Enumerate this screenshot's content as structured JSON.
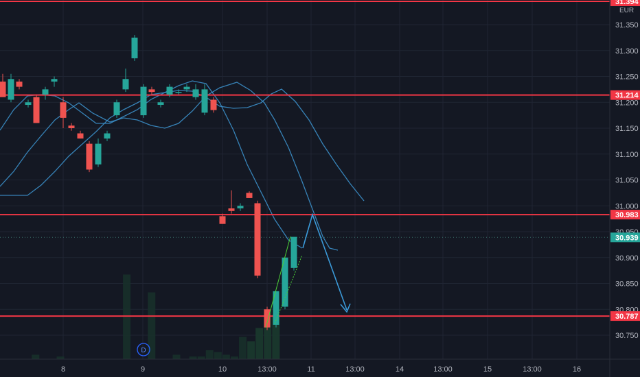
{
  "chart_data": {
    "type": "candlestick",
    "currency": "EUR",
    "y_axis_ticks": [
      "31.350",
      "31.300",
      "31.250",
      "31.200",
      "31.150",
      "31.100",
      "31.050",
      "31.000",
      "30.950",
      "30.900",
      "30.850",
      "30.800",
      "30.750"
    ],
    "ylim": [
      30.72,
      31.395
    ],
    "x_axis_ticks": [
      "8",
      "9",
      "10",
      "13:00",
      "11",
      "13:00",
      "14",
      "13:00",
      "15",
      "13:00",
      "16"
    ],
    "horizontal_levels": [
      {
        "value": 31.394,
        "label": "31.394",
        "color": "#f23645"
      },
      {
        "value": 31.214,
        "label": "31.214",
        "color": "#f23645"
      },
      {
        "value": 30.983,
        "label": "30.983",
        "color": "#f23645"
      },
      {
        "value": 30.787,
        "label": "30.787",
        "color": "#f23645"
      }
    ],
    "last_price": {
      "value": 30.939,
      "label": "30.939",
      "color": "#26a69a"
    },
    "session_marker": "D",
    "colors": {
      "up": "#26a69a",
      "down": "#ef5350",
      "ma": "#3b8fc9",
      "arrow": "#3b9ad9",
      "trend": "#4cd137"
    },
    "candles": [
      {
        "o": 31.24,
        "h": 31.255,
        "l": 31.215,
        "c": 31.21
      },
      {
        "o": 31.205,
        "h": 31.255,
        "l": 31.2,
        "c": 31.245
      },
      {
        "o": 31.24,
        "h": 31.245,
        "l": 31.225,
        "c": 31.23
      },
      {
        "o": 31.195,
        "h": 31.205,
        "l": 31.19,
        "c": 31.2
      },
      {
        "o": 31.21,
        "h": 31.215,
        "l": 31.16,
        "c": 31.16
      },
      {
        "o": 31.215,
        "h": 31.23,
        "l": 31.205,
        "c": 31.225
      },
      {
        "o": 31.24,
        "h": 31.25,
        "l": 31.23,
        "c": 31.245
      },
      {
        "o": 31.2,
        "h": 31.21,
        "l": 31.15,
        "c": 31.17
      },
      {
        "o": 31.155,
        "h": 31.16,
        "l": 31.145,
        "c": 31.15
      },
      {
        "o": 31.14,
        "h": 31.145,
        "l": 31.13,
        "c": 31.13
      },
      {
        "o": 31.12,
        "h": 31.125,
        "l": 31.065,
        "c": 31.07
      },
      {
        "o": 31.08,
        "h": 31.13,
        "l": 31.075,
        "c": 31.12
      },
      {
        "o": 31.13,
        "h": 31.145,
        "l": 31.125,
        "c": 31.14
      },
      {
        "o": 31.175,
        "h": 31.205,
        "l": 31.17,
        "c": 31.2
      },
      {
        "o": 31.225,
        "h": 31.265,
        "l": 31.22,
        "c": 31.245
      },
      {
        "o": 31.285,
        "h": 31.33,
        "l": 31.28,
        "c": 31.325
      },
      {
        "o": 31.175,
        "h": 31.235,
        "l": 31.17,
        "c": 31.23
      },
      {
        "o": 31.225,
        "h": 31.23,
        "l": 31.215,
        "c": 31.22
      },
      {
        "o": 31.195,
        "h": 31.205,
        "l": 31.19,
        "c": 31.2
      },
      {
        "o": 31.215,
        "h": 31.235,
        "l": 31.21,
        "c": 31.23
      },
      {
        "o": 31.22,
        "h": 31.225,
        "l": 31.215,
        "c": 31.22
      },
      {
        "o": 31.225,
        "h": 31.235,
        "l": 31.22,
        "c": 31.23
      },
      {
        "o": 31.21,
        "h": 31.235,
        "l": 31.205,
        "c": 31.225
      },
      {
        "o": 31.18,
        "h": 31.235,
        "l": 31.175,
        "c": 31.225
      },
      {
        "o": 31.205,
        "h": 31.21,
        "l": 31.18,
        "c": 31.185
      },
      {
        "o": 30.98,
        "h": 30.985,
        "l": 30.965,
        "c": 30.965
      },
      {
        "o": 30.995,
        "h": 31.03,
        "l": 30.985,
        "c": 30.99
      },
      {
        "o": 30.995,
        "h": 31.005,
        "l": 30.99,
        "c": 31.0
      },
      {
        "o": 31.025,
        "h": 31.028,
        "l": 31.015,
        "c": 31.015
      },
      {
        "o": 31.005,
        "h": 31.01,
        "l": 30.86,
        "c": 30.865
      },
      {
        "o": 30.8,
        "h": 30.805,
        "l": 30.76,
        "c": 30.765
      },
      {
        "o": 30.77,
        "h": 30.835,
        "l": 30.765,
        "c": 30.835
      },
      {
        "o": 30.805,
        "h": 30.9,
        "l": 30.8,
        "c": 30.9
      },
      {
        "o": 30.88,
        "h": 30.94,
        "l": 30.875,
        "c": 30.94
      }
    ],
    "volumes": [
      0,
      0,
      0,
      0,
      0.05,
      0,
      0,
      0.03,
      0,
      0,
      0,
      0,
      0,
      0,
      0,
      0.95,
      0,
      0,
      0.75,
      0,
      0,
      0.05,
      0,
      0.03,
      0.03,
      0.1,
      0.08,
      0.05,
      0.03,
      0.25,
      0.2,
      0.35,
      0.55,
      0.5
    ]
  }
}
